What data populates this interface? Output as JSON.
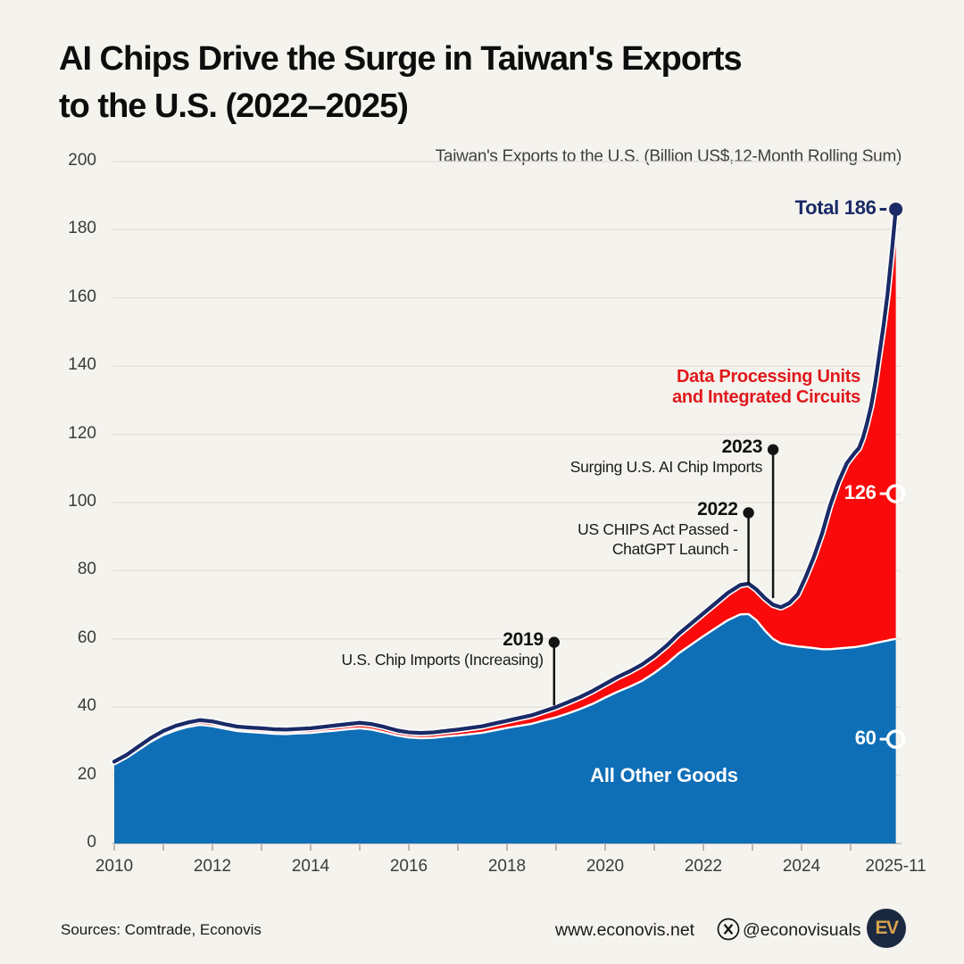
{
  "header": {
    "title_line1": "AI Chips Drive the Surge in Taiwan's Exports",
    "title_line2": "to the U.S. (2022–2025)"
  },
  "colors": {
    "background": "#f5f3ee",
    "gridline": "#e4e1dc",
    "baseline": "#cbc8c3",
    "tick": "#a8a49f",
    "blue_area": "#0e6eb6",
    "red_area": "#fa0a0a",
    "total_line": "#1a2a66",
    "separator_white": "#ffffff",
    "event_marker": "#141414",
    "red_label": "#e0181b",
    "white_label": "#ffffff",
    "logo_bg": "#1b2940",
    "logo_gold": "#d9a34d"
  },
  "chart_data": {
    "type": "area",
    "stacked": true,
    "subtitle": "Taiwan's Exports to the U.S. (Billion US$,12-Month Rolling Sum)",
    "title": "AI Chips Drive the Surge in Taiwan's Exports to the U.S. (2022–2025)",
    "y_axis": {
      "min": 0,
      "max": 200,
      "step": 20,
      "tick_labels": [
        "0",
        "20",
        "40",
        "60",
        "80",
        "100",
        "120",
        "140",
        "160",
        "180",
        "200"
      ]
    },
    "x_axis": {
      "range": [
        2010,
        2025.92
      ],
      "tick_years": [
        2010,
        2011,
        2012,
        2013,
        2014,
        2015,
        2016,
        2017,
        2018,
        2019,
        2020,
        2021,
        2022,
        2023,
        2024,
        2025
      ],
      "labels": [
        {
          "text": "2010",
          "year": 2010
        },
        {
          "text": "2012",
          "year": 2012
        },
        {
          "text": "2014",
          "year": 2014
        },
        {
          "text": "2016",
          "year": 2016
        },
        {
          "text": "2018",
          "year": 2018
        },
        {
          "text": "2020",
          "year": 2020
        },
        {
          "text": "2022",
          "year": 2022
        },
        {
          "text": "2024",
          "year": 2024
        },
        {
          "text": "2025-11",
          "year": 2025.92
        }
      ]
    },
    "x": [
      2010.0,
      2010.25,
      2010.5,
      2010.75,
      2011.0,
      2011.25,
      2011.5,
      2011.75,
      2012.0,
      2012.25,
      2012.5,
      2012.75,
      2013.0,
      2013.25,
      2013.5,
      2013.75,
      2014.0,
      2014.25,
      2014.5,
      2014.75,
      2015.0,
      2015.25,
      2015.5,
      2015.75,
      2016.0,
      2016.25,
      2016.5,
      2016.75,
      2017.0,
      2017.25,
      2017.5,
      2017.75,
      2018.0,
      2018.25,
      2018.5,
      2018.75,
      2019.0,
      2019.25,
      2019.5,
      2019.75,
      2020.0,
      2020.25,
      2020.5,
      2020.75,
      2021.0,
      2021.25,
      2021.5,
      2021.75,
      2022.0,
      2022.25,
      2022.5,
      2022.75,
      2022.92,
      2023.08,
      2023.25,
      2023.42,
      2023.58,
      2023.75,
      2023.92,
      2024.08,
      2024.25,
      2024.42,
      2024.58,
      2024.75,
      2024.92,
      2025.08,
      2025.17,
      2025.25,
      2025.33,
      2025.42,
      2025.5,
      2025.58,
      2025.67,
      2025.75,
      2025.83,
      2025.92
    ],
    "series": [
      {
        "name": "All Other Goods",
        "color": "#0e6eb6",
        "values": [
          23.2,
          25.1,
          27.5,
          29.9,
          31.8,
          33.2,
          34.2,
          34.8,
          34.4,
          33.7,
          33.0,
          32.7,
          32.5,
          32.2,
          32.1,
          32.3,
          32.4,
          32.8,
          33.1,
          33.5,
          33.8,
          33.4,
          32.6,
          31.7,
          31.1,
          30.9,
          31.0,
          31.4,
          31.7,
          32.1,
          32.5,
          33.2,
          33.9,
          34.5,
          35.1,
          36.1,
          37.0,
          38.2,
          39.5,
          41.0,
          42.8,
          44.5,
          46.0,
          47.7,
          50.0,
          52.7,
          55.8,
          58.3,
          60.8,
          63.2,
          65.5,
          67.2,
          67.3,
          65.5,
          62.5,
          60.0,
          58.7,
          58.2,
          57.8,
          57.6,
          57.3,
          57.0,
          57.0,
          57.2,
          57.4,
          57.6,
          57.8,
          58.0,
          58.2,
          58.5,
          58.8,
          59.0,
          59.3,
          59.5,
          59.8,
          60.0
        ]
      },
      {
        "name": "Data Processing Units and Integrated Circuits",
        "color": "#fa0a0a",
        "values": [
          0.8,
          0.9,
          1.0,
          1.1,
          1.2,
          1.3,
          1.3,
          1.4,
          1.4,
          1.3,
          1.3,
          1.3,
          1.3,
          1.3,
          1.3,
          1.3,
          1.4,
          1.4,
          1.5,
          1.5,
          1.6,
          1.6,
          1.6,
          1.5,
          1.5,
          1.5,
          1.6,
          1.6,
          1.7,
          1.8,
          1.9,
          2.0,
          2.1,
          2.3,
          2.5,
          2.7,
          3.0,
          3.3,
          3.5,
          3.8,
          4.0,
          4.3,
          4.5,
          4.8,
          5.0,
          5.3,
          5.7,
          6.2,
          6.7,
          7.3,
          8.0,
          8.6,
          8.9,
          9.0,
          9.5,
          10.0,
          10.6,
          12.3,
          15.2,
          20.4,
          26.7,
          34.0,
          42.0,
          48.8,
          54.1,
          56.9,
          58.2,
          61.0,
          64.8,
          70.0,
          76.2,
          84.0,
          92.7,
          101.5,
          112.2,
          126.0
        ]
      }
    ],
    "annotations": {
      "right_labels": [
        {
          "text": "Total 186",
          "value": 186,
          "marker_value": 186,
          "marker": "filled-dot",
          "style": "total"
        },
        {
          "text": "126",
          "value": 126,
          "marker_value": 102.6,
          "marker": "open-circle",
          "style": "red-band"
        },
        {
          "text": "60",
          "value": 60,
          "marker_value": 30.6,
          "marker": "open-circle",
          "style": "blue-band"
        }
      ],
      "events": [
        {
          "year_label": "2019",
          "desc_lines": [
            "U.S. Chip Imports (Increasing)"
          ],
          "x": 2018.96,
          "dot_value": 59,
          "line_end_value": 40.5
        },
        {
          "year_label": "2022",
          "desc_lines": [
            "US CHIPS Act Passed -",
            "ChatGPT Launch -"
          ],
          "x": 2022.92,
          "dot_value": 97,
          "line_end_value": 76
        },
        {
          "year_label": "2023",
          "desc_lines": [
            "Surging U.S. AI Chip Imports"
          ],
          "x": 2023.42,
          "dot_value": 115.5,
          "line_end_value": 72
        }
      ],
      "area_labels": [
        {
          "text": "All Other Goods",
          "x": 2021.2,
          "value": 20,
          "color": "#ffffff",
          "align": "center"
        },
        {
          "lines": [
            "Data Processing Units",
            "and Integrated Circuits"
          ],
          "x": 2025.2,
          "value": 134,
          "color": "#e0181b",
          "align": "right"
        }
      ]
    }
  },
  "footer": {
    "sources": "Sources: Comtrade, Econovis",
    "website": "www.econovis.net",
    "handle": "@econovisuals",
    "logo_text": "EV"
  }
}
